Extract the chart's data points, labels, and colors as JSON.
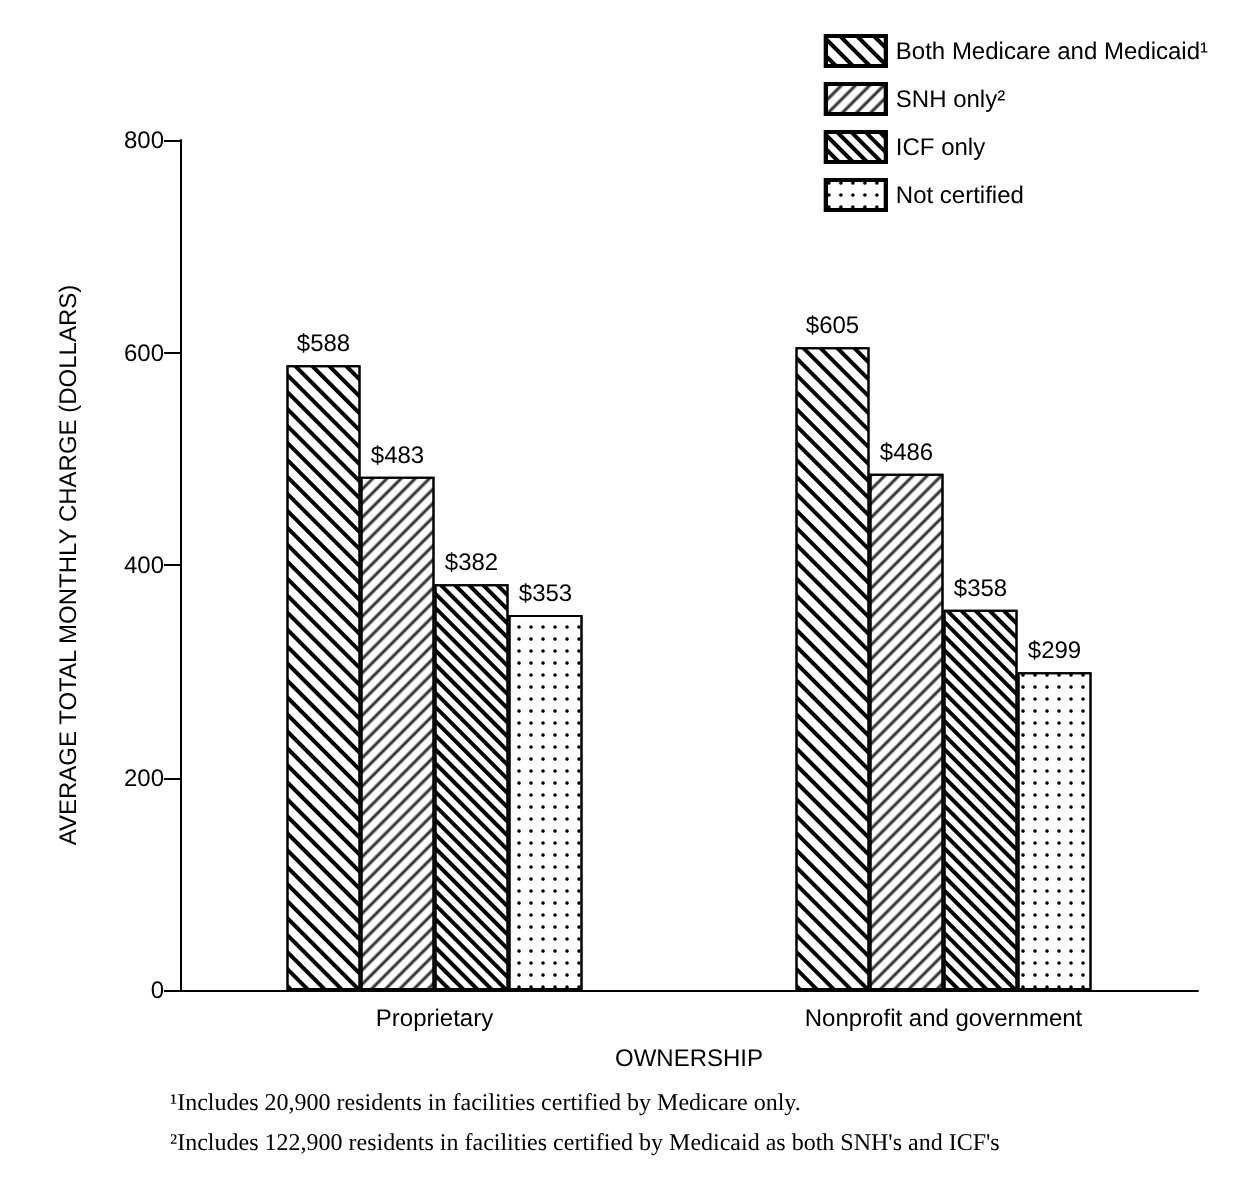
{
  "chart_data": {
    "type": "bar",
    "xlabel": "OWNERSHIP",
    "ylabel": "AVERAGE TOTAL MONTHLY CHARGE (DOLLARS)",
    "categories": [
      "Proprietary",
      "Nonprofit and government"
    ],
    "series": [
      {
        "name": "Both Medicare and Medicaid¹",
        "color": "#ffffff",
        "values": [
          588,
          605
        ],
        "value_labels": [
          "$588",
          "$605"
        ]
      },
      {
        "name": "SNH only²",
        "color": "#ffffff",
        "values": [
          483,
          486
        ],
        "value_labels": [
          "$483",
          "$486"
        ]
      },
      {
        "name": "ICF only",
        "color": "#ffffff",
        "values": [
          382,
          358
        ],
        "value_labels": [
          "$382",
          "$358"
        ]
      },
      {
        "name": "Not certified",
        "color": "#ffffff",
        "values": [
          353,
          299
        ],
        "value_labels": [
          "$353",
          "$299"
        ]
      }
    ],
    "ylim": [
      0,
      800
    ],
    "yticks": [
      0,
      200,
      400,
      600,
      800
    ],
    "grid": false,
    "legend": "top right",
    "annotations": [
      "¹Includes 20,900 residents in facilities certified by Medicare only.",
      "²Includes 122,900 residents in facilities certified by Medicaid as both SNH's and ICF's"
    ]
  }
}
